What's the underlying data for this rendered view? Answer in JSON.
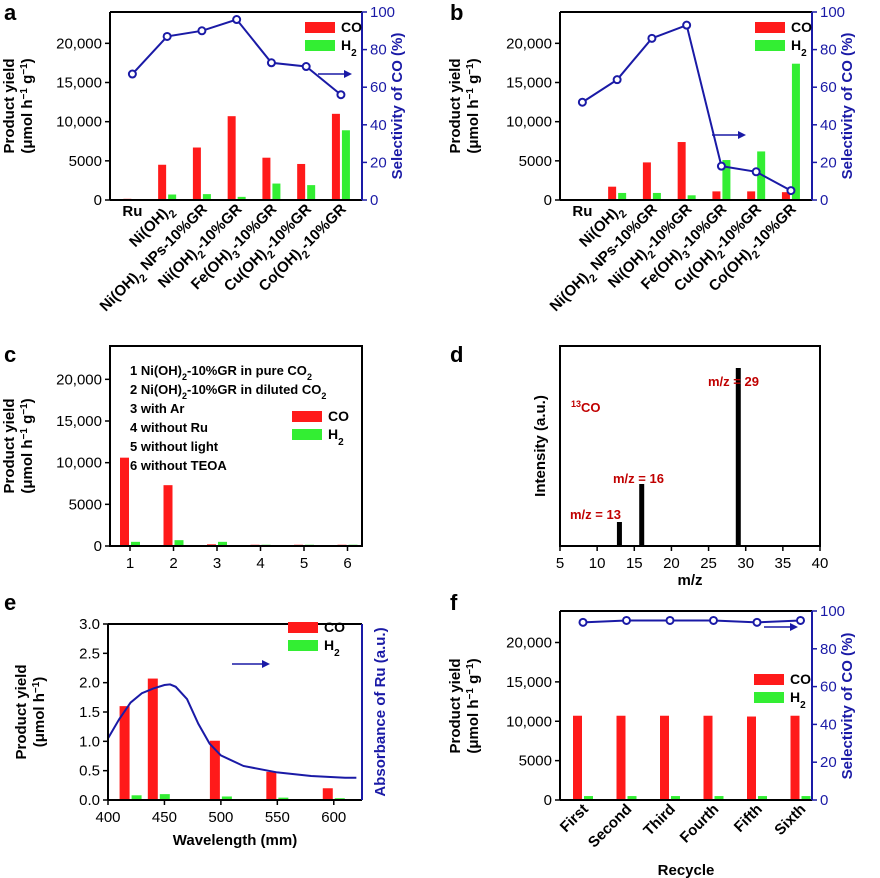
{
  "colors": {
    "co": "#ff1a1a",
    "h2": "#33ee33",
    "sel": "#1a1aa6",
    "spec": "#000000",
    "peak_label": "#c00000"
  },
  "legend": {
    "co": "CO",
    "h2_main": "H",
    "h2_sub": "2"
  },
  "chart_data": [
    {
      "panel": "a",
      "type": "bar",
      "categories": [
        "Ru",
        "Ni(OH)2",
        "Ni(OH)2 NPs-10%GR",
        "Ni(OH)2-10%GR",
        "Fe(OH)3-10%GR",
        "Cu(OH)2-10%GR",
        "Co(OH)2-10%GR"
      ],
      "category_parts": [
        [
          "Ru"
        ],
        [
          "Ni(OH)",
          "2",
          ""
        ],
        [
          "Ni(OH)",
          "2",
          " NPs-10%GR"
        ],
        [
          "Ni(OH)",
          "2",
          "-10%GR"
        ],
        [
          "Fe(OH)",
          "3",
          "-10%GR"
        ],
        [
          "Cu(OH)",
          "2",
          "-10%GR"
        ],
        [
          "Co(OH)",
          "2",
          "-10%GR"
        ]
      ],
      "series": [
        {
          "name": "CO",
          "values": [
            150,
            4500,
            6700,
            10700,
            5400,
            4600,
            11000
          ]
        },
        {
          "name": "H2",
          "values": [
            50,
            700,
            750,
            400,
            2100,
            1900,
            8900
          ]
        },
        {
          "name": "Selectivity of CO (%)",
          "axis": "right",
          "values": [
            67,
            87,
            90,
            96,
            73,
            71,
            56
          ]
        }
      ],
      "ylim": [
        0,
        24000
      ],
      "yticks": [
        0,
        5000,
        10000,
        15000,
        20000
      ],
      "ytick_labels": [
        "0",
        "5000",
        "10,000",
        "15,000",
        "20,000"
      ],
      "y2lim": [
        0,
        100
      ],
      "y2ticks": [
        0,
        20,
        40,
        60,
        80,
        100
      ],
      "ylabel": "Product yield",
      "ylabel2": "(μmol h",
      "ylabel2_sup": "−1",
      "ylabel2_mid": " g",
      "ylabel2_sup2": "−1",
      "ylabel2_end": ")",
      "y2label": "Selectivity of CO (%)",
      "xlabel": ""
    },
    {
      "panel": "b",
      "type": "bar",
      "categories": [
        "Ru",
        "Ni(OH)2",
        "Ni(OH)2 NPs-10%GR",
        "Ni(OH)2-10%GR",
        "Fe(OH)3-10%GR",
        "Cu(OH)2-10%GR",
        "Co(OH)2-10%GR"
      ],
      "category_parts": [
        [
          "Ru"
        ],
        [
          "Ni(OH)",
          "2",
          ""
        ],
        [
          "Ni(OH)",
          "2",
          " NPs-10%GR"
        ],
        [
          "Ni(OH)",
          "2",
          "-10%GR"
        ],
        [
          "Fe(OH)",
          "3",
          "-10%GR"
        ],
        [
          "Cu(OH)",
          "2",
          "-10%GR"
        ],
        [
          "Co(OH)",
          "2",
          "-10%GR"
        ]
      ],
      "series": [
        {
          "name": "CO",
          "values": [
            100,
            1700,
            4800,
            7400,
            1100,
            1100,
            1000
          ]
        },
        {
          "name": "H2",
          "values": [
            50,
            900,
            900,
            600,
            5100,
            6200,
            17400
          ]
        },
        {
          "name": "Selectivity of CO (%)",
          "axis": "right",
          "values": [
            52,
            64,
            86,
            93,
            18,
            15,
            5
          ]
        }
      ],
      "ylim": [
        0,
        24000
      ],
      "yticks": [
        0,
        5000,
        10000,
        15000,
        20000
      ],
      "ytick_labels": [
        "0",
        "5000",
        "10,000",
        "15,000",
        "20,000"
      ],
      "y2lim": [
        0,
        100
      ],
      "y2ticks": [
        0,
        20,
        40,
        60,
        80,
        100
      ],
      "ylabel": "Product yield",
      "y2label": "Selectivity of CO (%)",
      "xlabel": ""
    },
    {
      "panel": "c",
      "type": "bar",
      "categories": [
        "1",
        "2",
        "3",
        "4",
        "5",
        "6"
      ],
      "series": [
        {
          "name": "CO",
          "values": [
            10600,
            7300,
            200,
            150,
            150,
            150
          ]
        },
        {
          "name": "H2",
          "values": [
            500,
            700,
            500,
            150,
            150,
            150
          ]
        }
      ],
      "ylim": [
        0,
        24000
      ],
      "yticks": [
        0,
        5000,
        10000,
        15000,
        20000
      ],
      "ytick_labels": [
        "0",
        "5000",
        "10,000",
        "15,000",
        "20,000"
      ],
      "ylabel": "Product yield",
      "notes": [
        {
          "num": "1 Ni(OH)",
          "sub": "2",
          "rest": "-10%GR in pure CO",
          "sub2": "2"
        },
        {
          "num": "2 Ni(OH)",
          "sub": "2",
          "rest": "-10%GR in diluted CO",
          "sub2": "2"
        },
        {
          "num": "3 with Ar",
          "sub": "",
          "rest": "",
          "sub2": ""
        },
        {
          "num": "4 without Ru",
          "sub": "",
          "rest": "",
          "sub2": ""
        },
        {
          "num": "5 without light",
          "sub": "",
          "rest": "",
          "sub2": ""
        },
        {
          "num": "6 without TEOA",
          "sub": "",
          "rest": "",
          "sub2": ""
        }
      ]
    },
    {
      "panel": "d",
      "type": "bar",
      "x": [
        13,
        16,
        29
      ],
      "values": [
        0.12,
        0.31,
        0.89
      ],
      "xlim": [
        5,
        40
      ],
      "xticks": [
        5,
        10,
        15,
        20,
        25,
        30,
        35,
        40
      ],
      "xlabel": "m/z",
      "ylabel": "Intensity (a.u.)",
      "annotation_sup": "13",
      "annotation": "CO",
      "peak_labels": [
        "m/z = 13",
        "m/z = 16",
        "m/z = 29"
      ]
    },
    {
      "panel": "e",
      "type": "bar",
      "x": [
        420,
        445,
        500,
        550,
        600
      ],
      "series": [
        {
          "name": "CO",
          "values": [
            1.6,
            2.07,
            1.01,
            0.48,
            0.2
          ]
        },
        {
          "name": "H2",
          "values": [
            0.08,
            0.1,
            0.06,
            0.04,
            0.03
          ]
        },
        {
          "name": "Absorbance of Ru (a.u.)",
          "axis": "right",
          "x": [
            400,
            410,
            420,
            430,
            440,
            450,
            455,
            460,
            470,
            480,
            490,
            500,
            520,
            550,
            580,
            610,
            620
          ],
          "values": [
            1.05,
            1.38,
            1.66,
            1.82,
            1.9,
            1.96,
            1.97,
            1.93,
            1.72,
            1.3,
            0.96,
            0.76,
            0.58,
            0.47,
            0.41,
            0.38,
            0.38
          ]
        }
      ],
      "xlim": [
        400,
        625
      ],
      "xticks": [
        400,
        450,
        500,
        550,
        600
      ],
      "ylim": [
        0,
        3.0
      ],
      "yticks": [
        0,
        0.5,
        1.0,
        1.5,
        2.0,
        2.5,
        3.0
      ],
      "ytick_labels": [
        "0.0",
        "0.5",
        "1.0",
        "1.5",
        "2.0",
        "2.5",
        "3.0"
      ],
      "xlabel": "Wavelength (mm)",
      "ylabel": "Product yield",
      "ylabel2": "(μmol h",
      "ylabel2_sup": "−1",
      "ylabel2_end": ")",
      "y2label": "Absorbance of Ru (a.u.)"
    },
    {
      "panel": "f",
      "type": "bar",
      "categories": [
        "First",
        "Second",
        "Third",
        "Fourth",
        "Fifth",
        "Sixth"
      ],
      "series": [
        {
          "name": "CO",
          "values": [
            10700,
            10700,
            10700,
            10700,
            10600,
            10700
          ]
        },
        {
          "name": "H2",
          "values": [
            500,
            500,
            500,
            500,
            500,
            500
          ]
        },
        {
          "name": "Selectivity of CO (%)",
          "axis": "right",
          "values": [
            94,
            95,
            95,
            95,
            94,
            95
          ]
        }
      ],
      "ylim": [
        0,
        24000
      ],
      "yticks": [
        0,
        5000,
        10000,
        15000,
        20000
      ],
      "ytick_labels": [
        "0",
        "5000",
        "10,000",
        "15,000",
        "20,000"
      ],
      "y2lim": [
        0,
        100
      ],
      "y2ticks": [
        0,
        20,
        40,
        60,
        80,
        100
      ],
      "xlabel": "Recycle",
      "ylabel": "Product yield",
      "y2label": "Selectivity of CO (%)"
    }
  ]
}
